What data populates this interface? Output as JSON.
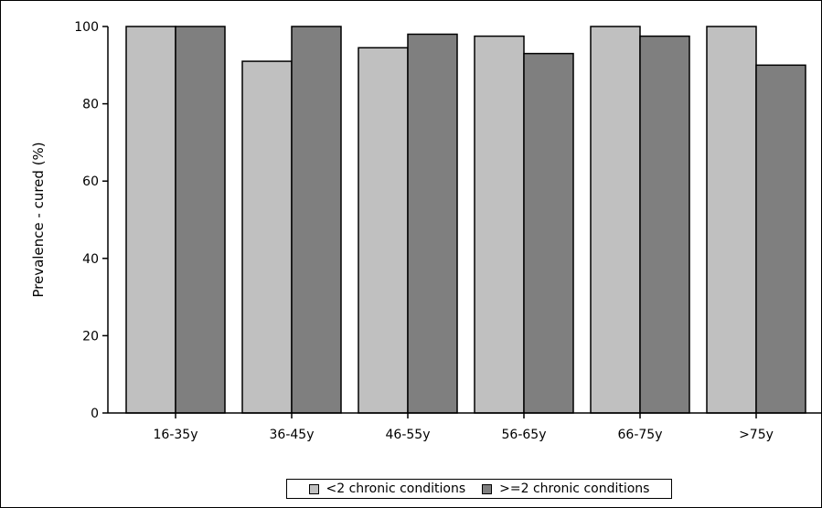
{
  "chart_data": {
    "type": "bar",
    "title": "",
    "xlabel": "",
    "ylabel": "Prevalence - cured (%)",
    "categories": [
      "16-35y",
      "36-45y",
      "46-55y",
      "56-65y",
      "66-75y",
      ">75y"
    ],
    "ylim": [
      0,
      100
    ],
    "yticks": [
      0,
      20,
      40,
      60,
      80,
      100
    ],
    "grid": false,
    "legend_position": "bottom",
    "series": [
      {
        "name": "<2 chronic conditions",
        "color": "#c0c0c0",
        "values": [
          100,
          91,
          94.5,
          97.5,
          100,
          100
        ]
      },
      {
        "name": ">=2 chronic conditions",
        "color": "#7f7f7f",
        "values": [
          100,
          100,
          98,
          93,
          97.5,
          90
        ]
      }
    ]
  }
}
